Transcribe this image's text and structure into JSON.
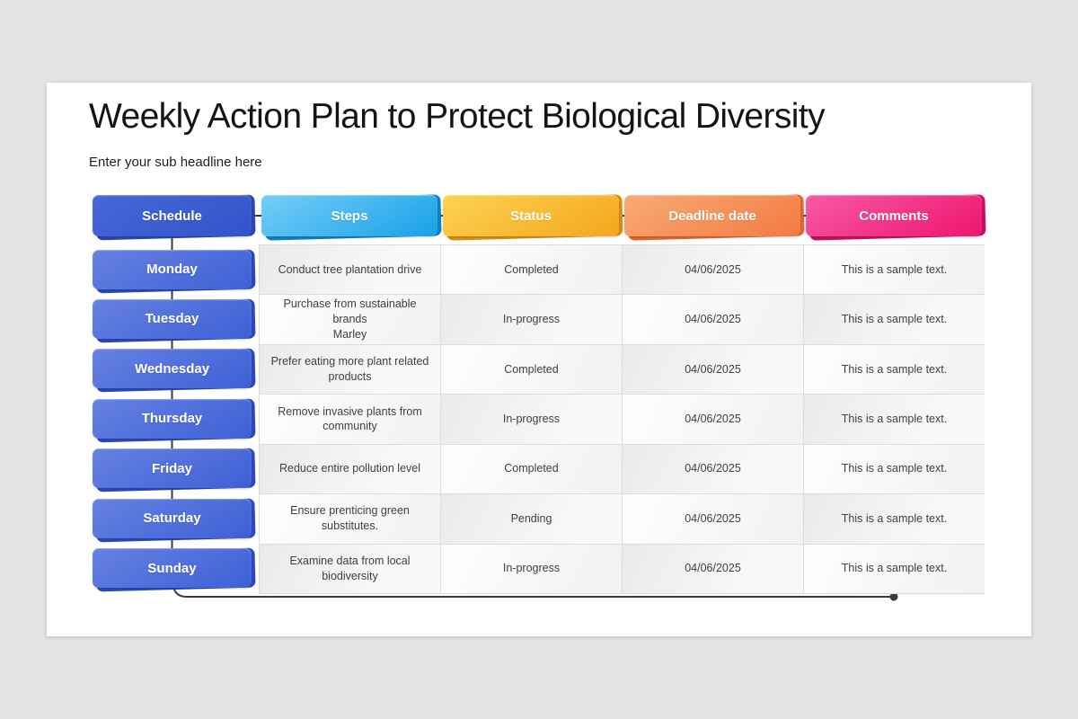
{
  "title": "Weekly Action Plan to Protect Biological Diversity",
  "subtitle": "Enter your sub headline here",
  "theme": {
    "connector_color": "#3b3b3b",
    "canvas_bg": "#e5e4e5",
    "border_color": "#dcdcdc"
  },
  "day_button": {
    "c1": "#6681e2",
    "c2": "#3f60d6",
    "back": "#2c4abc"
  },
  "columns": [
    {
      "label": "Schedule",
      "c1": "#4767d8",
      "c2": "#3154cb",
      "back": "#2a47b0"
    },
    {
      "label": "Steps",
      "c1": "#76cef7",
      "c2": "#17a1e9",
      "back": "#0e83c4"
    },
    {
      "label": "Status",
      "c1": "#fcd452",
      "c2": "#f5a51d",
      "back": "#d98f12"
    },
    {
      "label": "Deadline date",
      "c1": "#f9aa76",
      "c2": "#f37a41",
      "back": "#e0662e"
    },
    {
      "label": "Comments",
      "c1": "#f85aa5",
      "c2": "#ee146f",
      "back": "#ce0d5d"
    }
  ],
  "rows": [
    {
      "day": "Monday",
      "steps": "Conduct tree plantation drive",
      "status": "Completed",
      "deadline": "04/06/2025",
      "comments": "This is a sample text."
    },
    {
      "day": "Tuesday",
      "steps": "Purchase from sustainable\nbrands\nMarley",
      "status": "In-progress",
      "deadline": "04/06/2025",
      "comments": "This is a sample text."
    },
    {
      "day": "Wednesday",
      "steps": "Prefer eating more plant related\nproducts",
      "status": "Completed",
      "deadline": "04/06/2025",
      "comments": "This is a sample text."
    },
    {
      "day": "Thursday",
      "steps": "Remove invasive plants from\ncommunity",
      "status": "In-progress",
      "deadline": "04/06/2025",
      "comments": "This is a sample text."
    },
    {
      "day": "Friday",
      "steps": "Reduce entire pollution level",
      "status": "Completed",
      "deadline": "04/06/2025",
      "comments": "This is a sample text."
    },
    {
      "day": "Saturday",
      "steps": "Ensure prenticing green\nsubstitutes.",
      "status": "Pending",
      "deadline": "04/06/2025",
      "comments": "This is a sample text."
    },
    {
      "day": "Sunday",
      "steps": "Examine data from local\nbiodiversity",
      "status": "In-progress",
      "deadline": "04/06/2025",
      "comments": "This is a sample text."
    }
  ]
}
